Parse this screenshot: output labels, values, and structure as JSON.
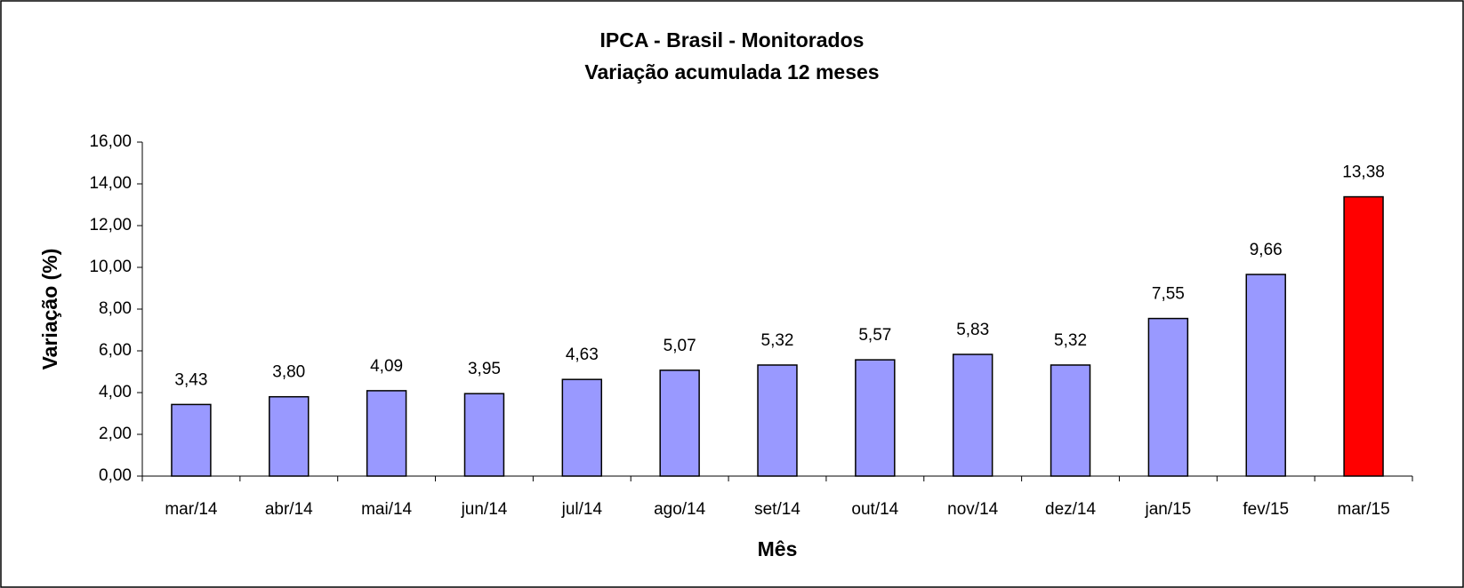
{
  "chart_data": {
    "type": "bar",
    "title": "IPCA - Brasil - Monitorados",
    "subtitle": "Variação acumulada 12 meses",
    "x_label": "Mês",
    "y_label": "Variação (%)",
    "categories": [
      "mar/14",
      "abr/14",
      "mai/14",
      "jun/14",
      "jul/14",
      "ago/14",
      "set/14",
      "out/14",
      "nov/14",
      "dez/14",
      "jan/15",
      "fev/15",
      "mar/15"
    ],
    "values": [
      3.43,
      3.8,
      4.09,
      3.95,
      4.63,
      5.07,
      5.32,
      5.57,
      5.83,
      5.32,
      7.55,
      9.66,
      13.38
    ],
    "value_labels": [
      "3,43",
      "3,80",
      "4,09",
      "3,95",
      "4,63",
      "5,07",
      "5,32",
      "5,57",
      "5,83",
      "5,32",
      "7,55",
      "9,66",
      "13,38"
    ],
    "colors": [
      "#9999ff",
      "#9999ff",
      "#9999ff",
      "#9999ff",
      "#9999ff",
      "#9999ff",
      "#9999ff",
      "#9999ff",
      "#9999ff",
      "#9999ff",
      "#9999ff",
      "#9999ff",
      "#ff0000"
    ],
    "ylim": [
      0,
      16
    ],
    "yticks": [
      {
        "value": 0,
        "label": "0,00"
      },
      {
        "value": 2,
        "label": "2,00"
      },
      {
        "value": 4,
        "label": "4,00"
      },
      {
        "value": 6,
        "label": "6,00"
      },
      {
        "value": 8,
        "label": "8,00"
      },
      {
        "value": 10,
        "label": "10,00"
      },
      {
        "value": 12,
        "label": "12,00"
      },
      {
        "value": 14,
        "label": "14,00"
      },
      {
        "value": 16,
        "label": "16,00"
      }
    ],
    "grid": false
  }
}
